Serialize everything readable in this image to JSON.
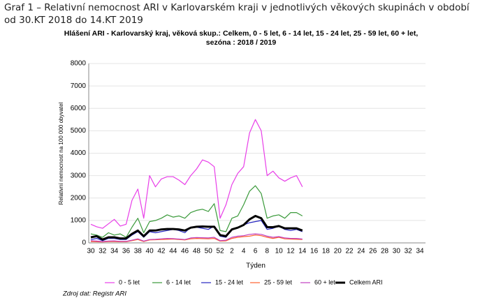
{
  "heading": "Graf 1 – Relativní nemocnost ARI v Karlovarském kraji v jednotlivých věkových skupinách v období od 30.KT 2018 do 14.KT 2019",
  "chart_data": {
    "type": "line",
    "title": "Hlášení ARI  -   Karlovarský kraj, věková skup.: Celkem,   0 - 5 let,   6 - 14 let,   15 - 24 let,   25 - 59 let,   60 + let, sezóna : 2018 / 2019",
    "y_label": "Relativní nemocnost na 100 000 obyvatel",
    "x_label": "Týden",
    "source": "Zdroj dat: Registr ARI",
    "categories": [
      30,
      null,
      32,
      null,
      34,
      null,
      36,
      null,
      38,
      null,
      40,
      null,
      42,
      null,
      44,
      null,
      46,
      null,
      48,
      null,
      50,
      null,
      52,
      null,
      2,
      null,
      4,
      null,
      6,
      null,
      8,
      null,
      10,
      null,
      12,
      null,
      14,
      null,
      16,
      null,
      18,
      null,
      20,
      null,
      22,
      null,
      24,
      null,
      26,
      null,
      28,
      null,
      30,
      null,
      32,
      null,
      34
    ],
    "ylim": [
      0,
      8000
    ],
    "yticks": [
      0,
      1000,
      2000,
      3000,
      4000,
      5000,
      6000,
      7000,
      8000
    ],
    "grid": true,
    "legend": "bottom",
    "series": [
      {
        "name": "0 - 5 let",
        "color": "#e83ee8",
        "width": 1.2,
        "values": [
          830,
          720,
          650,
          850,
          1050,
          750,
          830,
          1900,
          2400,
          1100,
          3000,
          2500,
          2850,
          2950,
          2950,
          2800,
          2600,
          3000,
          3300,
          3700,
          3600,
          3400,
          1100,
          1700,
          2600,
          3100,
          3400,
          4900,
          5500,
          5000,
          3000,
          3200,
          2900,
          2750,
          2900,
          3000,
          2500,
          null,
          null,
          null,
          null,
          null,
          null,
          null,
          null,
          null,
          null,
          null,
          null,
          null,
          null,
          null,
          null,
          null,
          null,
          null,
          null
        ]
      },
      {
        "name": "6 - 14 let",
        "color": "#3a9a3a",
        "width": 1.2,
        "values": [
          400,
          350,
          250,
          450,
          350,
          400,
          250,
          700,
          1100,
          450,
          950,
          1000,
          1100,
          1250,
          1150,
          1200,
          1100,
          1350,
          1450,
          1500,
          1400,
          1750,
          550,
          500,
          1100,
          1200,
          1700,
          2300,
          2550,
          2200,
          1100,
          1200,
          1250,
          1100,
          1350,
          1350,
          1200,
          null,
          null,
          null,
          null,
          null,
          null,
          null,
          null,
          null,
          null,
          null,
          null,
          null,
          null,
          null,
          null,
          null,
          null,
          null,
          null
        ]
      },
      {
        "name": "15 - 24 let",
        "color": "#2424c0",
        "width": 1.2,
        "values": [
          150,
          200,
          100,
          200,
          200,
          150,
          150,
          350,
          500,
          250,
          500,
          450,
          500,
          550,
          600,
          550,
          450,
          700,
          700,
          650,
          600,
          750,
          300,
          250,
          600,
          700,
          800,
          900,
          950,
          1000,
          600,
          650,
          750,
          600,
          550,
          600,
          500,
          null,
          null,
          null,
          null,
          null,
          null,
          null,
          null,
          null,
          null,
          null,
          null,
          null,
          null,
          null,
          null,
          null,
          null,
          null,
          null
        ]
      },
      {
        "name": "25 - 59 let",
        "color": "#ff6030",
        "width": 1.2,
        "values": [
          60,
          50,
          40,
          60,
          60,
          50,
          50,
          100,
          150,
          60,
          130,
          140,
          150,
          160,
          170,
          150,
          130,
          180,
          200,
          190,
          180,
          200,
          80,
          90,
          200,
          250,
          280,
          300,
          350,
          320,
          250,
          200,
          250,
          180,
          170,
          160,
          150,
          null,
          null,
          null,
          null,
          null,
          null,
          null,
          null,
          null,
          null,
          null,
          null,
          null,
          null,
          null,
          null,
          null,
          null,
          null,
          null
        ]
      },
      {
        "name": "60 + let",
        "color": "#c040c0",
        "width": 1.2,
        "values": [
          100,
          80,
          60,
          80,
          90,
          70,
          70,
          120,
          180,
          80,
          150,
          160,
          180,
          200,
          190,
          170,
          150,
          220,
          240,
          230,
          220,
          250,
          100,
          120,
          250,
          300,
          320,
          380,
          400,
          380,
          300,
          250,
          280,
          220,
          200,
          200,
          170,
          null,
          null,
          null,
          null,
          null,
          null,
          null,
          null,
          null,
          null,
          null,
          null,
          null,
          null,
          null,
          null,
          null,
          null,
          null,
          null
        ]
      },
      {
        "name": "Celkem ARI",
        "color": "#000000",
        "width": 3,
        "values": [
          250,
          300,
          150,
          250,
          250,
          200,
          200,
          400,
          550,
          300,
          550,
          550,
          600,
          620,
          620,
          600,
          550,
          680,
          720,
          730,
          720,
          720,
          350,
          300,
          600,
          680,
          800,
          1050,
          1200,
          1100,
          700,
          700,
          750,
          650,
          650,
          650,
          550,
          null,
          null,
          null,
          null,
          null,
          null,
          null,
          null,
          null,
          null,
          null,
          null,
          null,
          null,
          null,
          null,
          null,
          null,
          null,
          null
        ]
      }
    ]
  }
}
